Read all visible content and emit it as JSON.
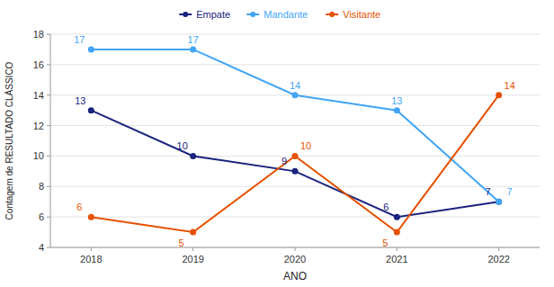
{
  "chart_data": {
    "type": "line",
    "title": "",
    "xlabel": "ANO",
    "ylabel": "Contagem de RESULTADO CLÁSSICO",
    "x": [
      2018,
      2019,
      2020,
      2021,
      2022
    ],
    "series": [
      {
        "name": "Empate",
        "color": "#1a237e",
        "marker": "circle",
        "values": [
          13,
          10,
          9,
          6,
          7
        ]
      },
      {
        "name": "Mandante",
        "color": "#42a5f5",
        "marker": "circle",
        "values": [
          17,
          17,
          14,
          13,
          7
        ]
      },
      {
        "name": "Visitante",
        "color": "#e65100",
        "marker": "circle",
        "values": [
          6,
          5,
          10,
          5,
          14
        ]
      }
    ],
    "xlim": [
      2017.6,
      2022.4
    ],
    "xticks": [
      2018,
      2019,
      2020,
      2021,
      2022
    ],
    "ylim": [
      4,
      18
    ],
    "yticks": [
      4,
      6,
      8,
      10,
      12,
      14,
      16,
      18
    ],
    "grid": true,
    "legend": "top",
    "data_labels": true
  }
}
